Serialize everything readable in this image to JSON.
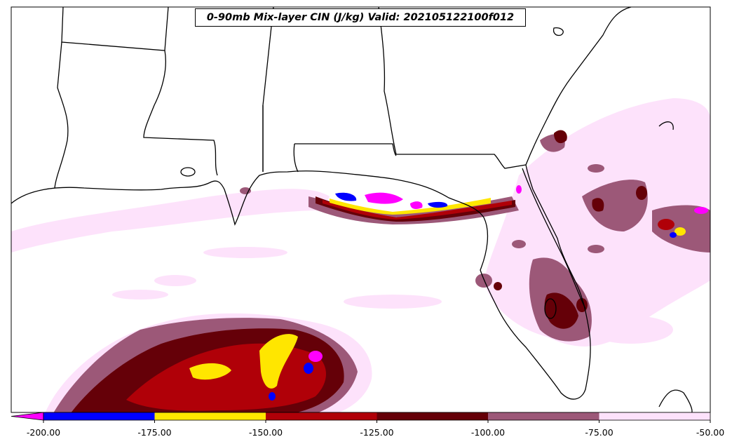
{
  "title": "0-90mb Mix-layer CIN (J/kg) Valid: 202105122100f012",
  "colorbar": {
    "ticks": [
      "-200.00",
      "-175.00",
      "-150.00",
      "-125.00",
      "-100.00",
      "-75.00",
      "-50.00"
    ],
    "bins": [
      {
        "from": -200,
        "to": -175,
        "color": "#0000ff"
      },
      {
        "from": -175,
        "to": -150,
        "color": "#ffe600"
      },
      {
        "from": -150,
        "to": -125,
        "color": "#b00008"
      },
      {
        "from": -125,
        "to": -100,
        "color": "#650008"
      },
      {
        "from": -100,
        "to": -75,
        "color": "#9c5878"
      },
      {
        "from": -75,
        "to": -50,
        "color": "#fde2fb"
      }
    ],
    "extend_below_color": "#ff00ff"
  }
}
